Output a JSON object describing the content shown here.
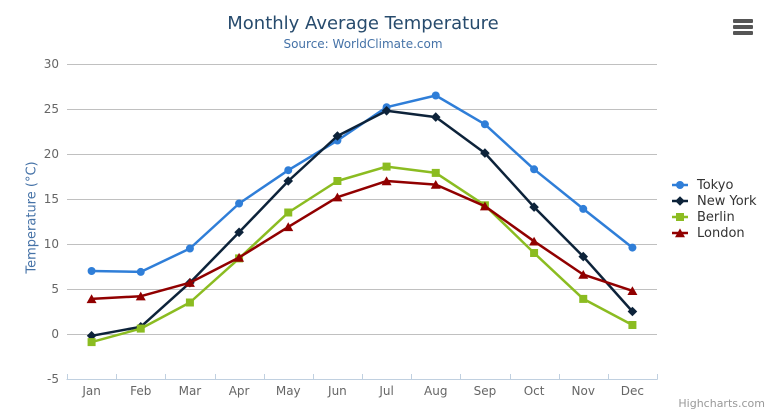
{
  "header": {
    "title": "Monthly Average Temperature",
    "subtitle": "Source: WorldClimate.com"
  },
  "credit": {
    "label": "Highcharts.com"
  },
  "export_menu": {
    "icon": "hamburger-icon"
  },
  "colors": {
    "title": "#274b6d",
    "subtitle": "#4572a7",
    "axis_label": "#666666",
    "axis_title": "#4572a7",
    "gridline": "#c0c0c0",
    "axis_line": "#c0d0e0",
    "legend_text": "#333333",
    "credit_text": "#999999"
  },
  "chart_data": {
    "type": "line",
    "title": "Monthly Average Temperature",
    "subtitle": "Source: WorldClimate.com",
    "categories": [
      "Jan",
      "Feb",
      "Mar",
      "Apr",
      "May",
      "Jun",
      "Jul",
      "Aug",
      "Sep",
      "Oct",
      "Nov",
      "Dec"
    ],
    "series": [
      {
        "name": "Tokyo",
        "color": "#2f7ed8",
        "marker": "circle",
        "values": [
          7.0,
          6.9,
          9.5,
          14.5,
          18.2,
          21.5,
          25.2,
          26.5,
          23.3,
          18.3,
          13.9,
          9.6
        ]
      },
      {
        "name": "New York",
        "color": "#0d233a",
        "marker": "diamond",
        "values": [
          -0.2,
          0.8,
          5.7,
          11.3,
          17.0,
          22.0,
          24.8,
          24.1,
          20.1,
          14.1,
          8.6,
          2.5
        ]
      },
      {
        "name": "Berlin",
        "color": "#8bbc21",
        "marker": "square",
        "values": [
          -0.9,
          0.6,
          3.5,
          8.4,
          13.5,
          17.0,
          18.6,
          17.9,
          14.3,
          9.0,
          3.9,
          1.0
        ]
      },
      {
        "name": "London",
        "color": "#910000",
        "marker": "triangle-up",
        "values": [
          3.9,
          4.2,
          5.7,
          8.5,
          11.9,
          15.2,
          17.0,
          16.6,
          14.2,
          10.3,
          6.6,
          4.8
        ]
      }
    ],
    "xlabel": "",
    "ylabel": "Temperature (°C)",
    "ylim": [
      -5,
      30
    ],
    "yticks": [
      -5,
      0,
      5,
      10,
      15,
      20,
      25,
      30
    ],
    "grid": true,
    "legend_position": "right"
  }
}
